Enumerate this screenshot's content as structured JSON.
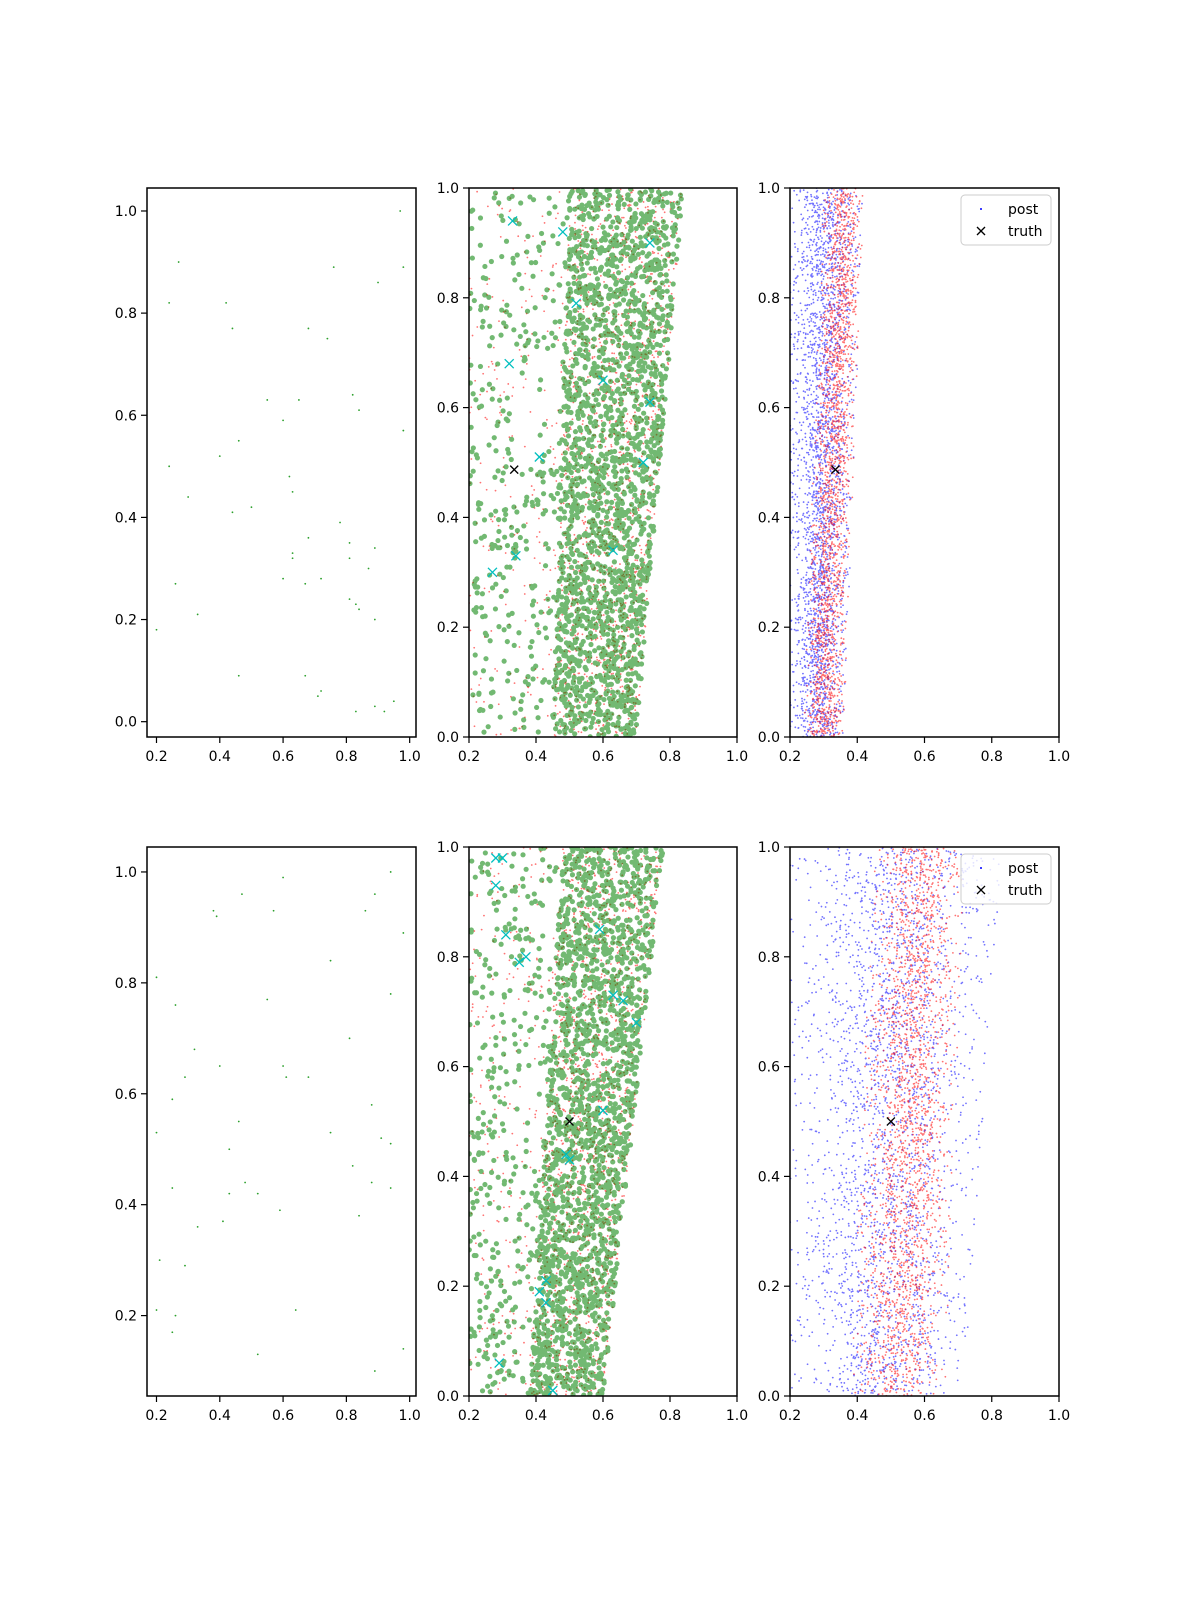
{
  "figure": {
    "background": "#ffffff"
  },
  "colors": {
    "prior": "#2ca02c",
    "samples": "#008000",
    "post_red": "#ff0000",
    "post_blue": "#0000ff",
    "cyan_marker": "#00bfbf",
    "truth": "#000000"
  },
  "chart_data": [
    {
      "id": "top-left",
      "type": "scatter",
      "xlim": [
        0.17,
        1.02
      ],
      "ylim": [
        -0.03,
        1.045
      ],
      "xticks": [
        "0.2",
        "0.4",
        "0.6",
        "0.8",
        "1.0"
      ],
      "xtick_values": [
        0.2,
        0.4,
        0.6,
        0.8,
        1.0
      ],
      "yticks": [
        "0.0",
        "0.2",
        "0.4",
        "0.6",
        "0.8",
        "1.0"
      ],
      "ytick_values": [
        0.0,
        0.2,
        0.4,
        0.6,
        0.8,
        1.0
      ],
      "series": [
        {
          "kind": "prior",
          "color": "prior",
          "points": [
            [
              0.97,
              1.0
            ],
            [
              0.27,
              0.9
            ],
            [
              0.76,
              0.89
            ],
            [
              0.98,
              0.89
            ],
            [
              0.9,
              0.86
            ],
            [
              0.24,
              0.82
            ],
            [
              0.42,
              0.82
            ],
            [
              0.44,
              0.77
            ],
            [
              0.68,
              0.77
            ],
            [
              0.74,
              0.75
            ],
            [
              0.82,
              0.64
            ],
            [
              0.65,
              0.63
            ],
            [
              0.55,
              0.63
            ],
            [
              0.84,
              0.61
            ],
            [
              0.6,
              0.59
            ],
            [
              0.98,
              0.57
            ],
            [
              0.46,
              0.55
            ],
            [
              0.4,
              0.52
            ],
            [
              0.24,
              0.5
            ],
            [
              0.62,
              0.48
            ],
            [
              0.63,
              0.45
            ],
            [
              0.3,
              0.44
            ],
            [
              0.5,
              0.42
            ],
            [
              0.44,
              0.41
            ],
            [
              0.78,
              0.39
            ],
            [
              0.68,
              0.36
            ],
            [
              0.81,
              0.35
            ],
            [
              0.89,
              0.34
            ],
            [
              0.63,
              0.33
            ],
            [
              0.63,
              0.32
            ],
            [
              0.81,
              0.32
            ],
            [
              0.87,
              0.3
            ],
            [
              0.6,
              0.28
            ],
            [
              0.72,
              0.28
            ],
            [
              0.26,
              0.27
            ],
            [
              0.67,
              0.27
            ],
            [
              0.81,
              0.24
            ],
            [
              0.83,
              0.23
            ],
            [
              0.84,
              0.22
            ],
            [
              0.33,
              0.21
            ],
            [
              0.89,
              0.2
            ],
            [
              0.2,
              0.18
            ],
            [
              0.46,
              0.09
            ],
            [
              0.67,
              0.09
            ],
            [
              0.72,
              0.06
            ],
            [
              0.71,
              0.05
            ],
            [
              0.89,
              0.03
            ],
            [
              0.95,
              0.04
            ],
            [
              0.83,
              0.02
            ],
            [
              0.92,
              0.02
            ]
          ]
        }
      ]
    },
    {
      "id": "top-middle",
      "type": "scatter",
      "xlim": [
        0.2,
        1.0
      ],
      "ylim": [
        0.0,
        1.0
      ],
      "xticks": [
        "0.2",
        "0.4",
        "0.6",
        "0.8",
        "1.0"
      ],
      "xtick_values": [
        0.2,
        0.4,
        0.6,
        0.8,
        1.0
      ],
      "yticks": [
        "0.0",
        "0.2",
        "0.4",
        "0.6",
        "0.8",
        "1.0"
      ],
      "ytick_values": [
        0.0,
        0.2,
        0.4,
        0.6,
        0.8,
        1.0
      ],
      "band": {
        "x_left": 0.2,
        "x_right_bottom": 0.7,
        "x_right_top": 0.84,
        "dense_left_bottom": 0.45,
        "dense_left_top": 0.5
      },
      "series": [
        {
          "kind": "cloud",
          "color": "post_red",
          "count": 1600,
          "radius": 0.9,
          "opacity": 0.55
        },
        {
          "kind": "cloud",
          "color": "samples",
          "count": 2400,
          "radius": 2.6,
          "opacity": 0.55
        },
        {
          "kind": "cross",
          "color": "cyan_marker",
          "points": [
            [
              0.33,
              0.94
            ],
            [
              0.48,
              0.92
            ],
            [
              0.32,
              0.68
            ],
            [
              0.27,
              0.3
            ],
            [
              0.34,
              0.33
            ],
            [
              0.41,
              0.51
            ],
            [
              0.74,
              0.9
            ],
            [
              0.72,
              0.5
            ],
            [
              0.52,
              0.79
            ],
            [
              0.6,
              0.65
            ],
            [
              0.74,
              0.61
            ],
            [
              0.63,
              0.34
            ]
          ]
        },
        {
          "kind": "truth",
          "color": "truth",
          "points": [
            [
              0.335,
              0.487
            ]
          ]
        }
      ]
    },
    {
      "id": "top-right",
      "type": "scatter",
      "xlim": [
        0.2,
        1.0
      ],
      "ylim": [
        0.0,
        1.0
      ],
      "xticks": [
        "0.2",
        "0.4",
        "0.6",
        "0.8",
        "1.0"
      ],
      "xtick_values": [
        0.2,
        0.4,
        0.6,
        0.8,
        1.0
      ],
      "yticks": [
        "0.0",
        "0.2",
        "0.4",
        "0.6",
        "0.8",
        "1.0"
      ],
      "ytick_values": [
        0.0,
        0.2,
        0.4,
        0.6,
        0.8,
        1.0
      ],
      "legend": {
        "location": "top-right",
        "entries": [
          "post",
          "truth"
        ]
      },
      "series": [
        {
          "kind": "cloud",
          "color": "post_blue",
          "count": 2600,
          "radius": 0.9,
          "opacity": 0.55,
          "x_range_bottom": [
            0.2,
            0.36
          ],
          "x_range_top": [
            0.2,
            0.42
          ]
        },
        {
          "kind": "cloud",
          "color": "post_red",
          "count": 2000,
          "radius": 0.9,
          "opacity": 0.55,
          "x_range_bottom": [
            0.24,
            0.36
          ],
          "x_range_top": [
            0.3,
            0.42
          ]
        },
        {
          "kind": "truth",
          "color": "truth",
          "points": [
            [
              0.335,
              0.487
            ]
          ]
        }
      ]
    },
    {
      "id": "bottom-left",
      "type": "scatter",
      "xlim": [
        0.17,
        1.02
      ],
      "ylim": [
        0.055,
        1.045
      ],
      "xticks": [
        "0.2",
        "0.4",
        "0.6",
        "0.8",
        "1.0"
      ],
      "xtick_values": [
        0.2,
        0.4,
        0.6,
        0.8,
        1.0
      ],
      "yticks": [
        "0.2",
        "0.4",
        "0.6",
        "0.8",
        "1.0"
      ],
      "ytick_values": [
        0.2,
        0.4,
        0.6,
        0.8,
        1.0
      ],
      "series": [
        {
          "kind": "prior",
          "color": "prior",
          "points": [
            [
              0.94,
              1.0
            ],
            [
              0.6,
              0.99
            ],
            [
              0.47,
              0.96
            ],
            [
              0.89,
              0.96
            ],
            [
              0.38,
              0.93
            ],
            [
              0.39,
              0.92
            ],
            [
              0.57,
              0.93
            ],
            [
              0.86,
              0.93
            ],
            [
              0.98,
              0.89
            ],
            [
              0.75,
              0.84
            ],
            [
              0.2,
              0.81
            ],
            [
              0.94,
              0.78
            ],
            [
              0.55,
              0.77
            ],
            [
              0.26,
              0.76
            ],
            [
              0.81,
              0.7
            ],
            [
              0.32,
              0.68
            ],
            [
              0.4,
              0.65
            ],
            [
              0.6,
              0.65
            ],
            [
              0.68,
              0.63
            ],
            [
              0.29,
              0.63
            ],
            [
              0.61,
              0.63
            ],
            [
              0.25,
              0.59
            ],
            [
              0.88,
              0.58
            ],
            [
              0.46,
              0.55
            ],
            [
              0.75,
              0.53
            ],
            [
              0.2,
              0.53
            ],
            [
              0.91,
              0.52
            ],
            [
              0.94,
              0.51
            ],
            [
              0.43,
              0.5
            ],
            [
              0.82,
              0.47
            ],
            [
              0.48,
              0.44
            ],
            [
              0.88,
              0.44
            ],
            [
              0.25,
              0.43
            ],
            [
              0.94,
              0.43
            ],
            [
              0.43,
              0.42
            ],
            [
              0.52,
              0.42
            ],
            [
              0.59,
              0.39
            ],
            [
              0.84,
              0.38
            ],
            [
              0.41,
              0.37
            ],
            [
              0.33,
              0.36
            ],
            [
              0.21,
              0.3
            ],
            [
              0.29,
              0.29
            ],
            [
              0.2,
              0.21
            ],
            [
              0.64,
              0.21
            ],
            [
              0.26,
              0.2
            ],
            [
              0.25,
              0.17
            ],
            [
              0.98,
              0.14
            ],
            [
              0.52,
              0.13
            ],
            [
              0.89,
              0.1
            ]
          ]
        }
      ]
    },
    {
      "id": "bottom-middle",
      "type": "scatter",
      "xlim": [
        0.2,
        1.0
      ],
      "ylim": [
        0.0,
        1.0
      ],
      "xticks": [
        "0.2",
        "0.4",
        "0.6",
        "0.8",
        "1.0"
      ],
      "xtick_values": [
        0.2,
        0.4,
        0.6,
        0.8,
        1.0
      ],
      "yticks": [
        "0.0",
        "0.2",
        "0.4",
        "0.6",
        "0.8",
        "1.0"
      ],
      "ytick_values": [
        0.0,
        0.2,
        0.4,
        0.6,
        0.8,
        1.0
      ],
      "band": {
        "x_left": 0.2,
        "x_right_bottom": 0.6,
        "x_right_top": 0.78,
        "dense_left_bottom": 0.38,
        "dense_left_top": 0.48
      },
      "series": [
        {
          "kind": "cloud",
          "color": "post_red",
          "count": 1600,
          "radius": 0.9,
          "opacity": 0.55
        },
        {
          "kind": "cloud",
          "color": "samples",
          "count": 2400,
          "radius": 2.6,
          "opacity": 0.55
        },
        {
          "kind": "cross",
          "color": "cyan_marker",
          "points": [
            [
              0.28,
              0.98
            ],
            [
              0.3,
              0.98
            ],
            [
              0.28,
              0.93
            ],
            [
              0.31,
              0.84
            ],
            [
              0.37,
              0.8
            ],
            [
              0.35,
              0.79
            ],
            [
              0.7,
              0.68
            ],
            [
              0.63,
              0.73
            ],
            [
              0.66,
              0.72
            ],
            [
              0.59,
              0.85
            ],
            [
              0.6,
              0.52
            ],
            [
              0.49,
              0.44
            ],
            [
              0.5,
              0.43
            ],
            [
              0.43,
              0.21
            ],
            [
              0.41,
              0.19
            ],
            [
              0.43,
              0.17
            ],
            [
              0.29,
              0.06
            ],
            [
              0.45,
              0.01
            ]
          ]
        },
        {
          "kind": "truth",
          "color": "truth",
          "points": [
            [
              0.5,
              0.5
            ]
          ]
        }
      ]
    },
    {
      "id": "bottom-right",
      "type": "scatter",
      "xlim": [
        0.2,
        1.0
      ],
      "ylim": [
        0.0,
        1.0
      ],
      "xticks": [
        "0.2",
        "0.4",
        "0.6",
        "0.8",
        "1.0"
      ],
      "xtick_values": [
        0.2,
        0.4,
        0.6,
        0.8,
        1.0
      ],
      "yticks": [
        "0.0",
        "0.2",
        "0.4",
        "0.6",
        "0.8",
        "1.0"
      ],
      "ytick_values": [
        0.0,
        0.2,
        0.4,
        0.6,
        0.8,
        1.0
      ],
      "legend": {
        "location": "top-right",
        "entries": [
          "post",
          "truth"
        ]
      },
      "series": [
        {
          "kind": "cloud",
          "color": "post_blue",
          "count": 2600,
          "radius": 0.9,
          "opacity": 0.55,
          "x_range_bottom": [
            0.2,
            0.72
          ],
          "x_range_top": [
            0.2,
            0.83
          ]
        },
        {
          "kind": "cloud",
          "color": "post_red",
          "count": 2200,
          "radius": 0.9,
          "opacity": 0.55,
          "x_range_bottom": [
            0.38,
            0.66
          ],
          "x_range_top": [
            0.45,
            0.72
          ]
        },
        {
          "kind": "truth",
          "color": "truth",
          "points": [
            [
              0.5,
              0.5
            ]
          ]
        }
      ]
    }
  ]
}
